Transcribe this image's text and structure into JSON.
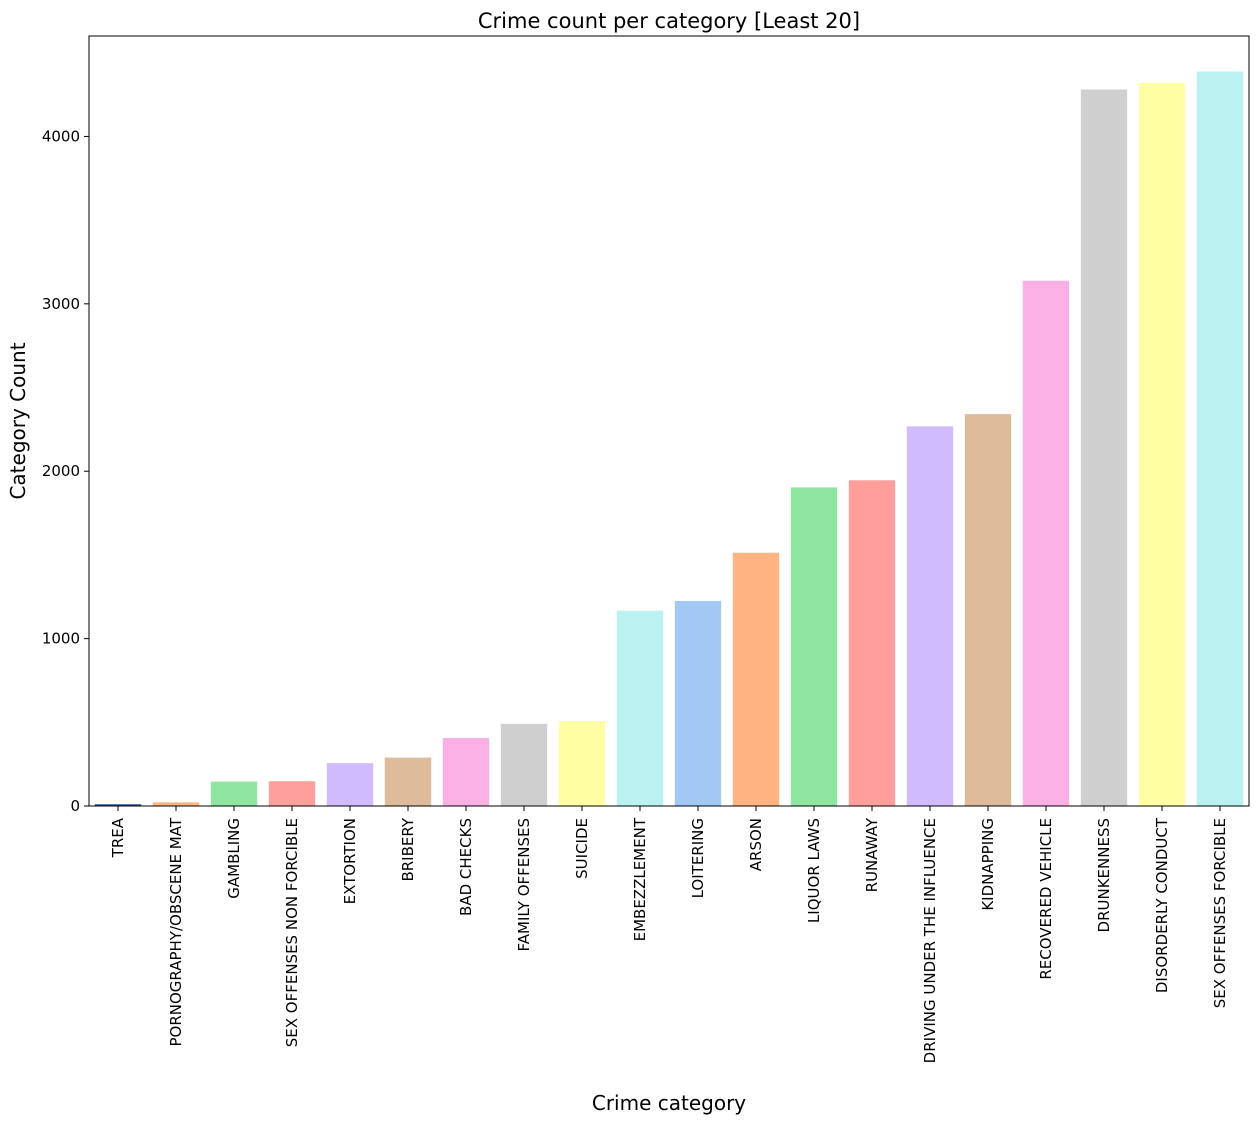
{
  "chart_data": {
    "type": "bar",
    "title": "Crime count per category [Least 20]",
    "xlabel": "Crime category",
    "ylabel": "Category Count",
    "ylim": [
      0,
      4600
    ],
    "yticks": [
      0,
      1000,
      2000,
      3000,
      4000
    ],
    "grid": false,
    "legend": "none",
    "categories": [
      "TREA",
      "PORNOGRAPHY/OBSCENE MAT",
      "GAMBLING",
      "SEX OFFENSES NON FORCIBLE",
      "EXTORTION",
      "BRIBERY",
      "BAD CHECKS",
      "FAMILY OFFENSES",
      "SUICIDE",
      "EMBEZZLEMENT",
      "LOITERING",
      "ARSON",
      "LIQUOR LAWS",
      "RUNAWAY",
      "DRIVING UNDER THE INFLUENCE",
      "KIDNAPPING",
      "RECOVERED VEHICLE",
      "DRUNKENNESS",
      "DISORDERLY CONDUCT",
      "SEX OFFENSES FORCIBLE"
    ],
    "values": [
      6,
      22,
      146,
      148,
      256,
      289,
      406,
      491,
      508,
      1166,
      1225,
      1513,
      1903,
      1946,
      2268,
      2341,
      3138,
      4280,
      4320,
      4388
    ],
    "colors": [
      "#a1c9f4",
      "#ffb482",
      "#8de5a1",
      "#ff9f9b",
      "#d0bbff",
      "#debb9b",
      "#fab0e4",
      "#cfcfcf",
      "#fffea3",
      "#b9f2f0",
      "#a1c9f4",
      "#ffb482",
      "#8de5a1",
      "#ff9f9b",
      "#d0bbff",
      "#debb9b",
      "#fab0e4",
      "#cfcfcf",
      "#fffea3",
      "#b9f2f0"
    ],
    "first_bar_color": "#1f4e9c"
  }
}
